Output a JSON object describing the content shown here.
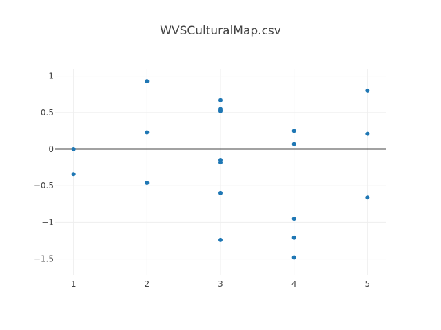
{
  "chart_data": {
    "type": "scatter",
    "title": "WVSCulturalMap.csv",
    "xlabel": "",
    "ylabel": "",
    "xlim": [
      0.75,
      5.25
    ],
    "ylim": [
      -1.72,
      1.1
    ],
    "x_ticks": [
      1,
      2,
      3,
      4,
      5
    ],
    "y_ticks": [
      1,
      0.5,
      0,
      -0.5,
      -1,
      -1.5
    ],
    "x_tick_labels": [
      "1",
      "2",
      "3",
      "4",
      "5"
    ],
    "y_tick_labels": [
      "1",
      "0.5",
      "0",
      "−0.5",
      "−1",
      "−1.5"
    ],
    "grid": true,
    "marker_color": "#1f77b4",
    "series": [
      {
        "x": [
          1,
          1,
          2,
          2,
          2,
          3,
          3,
          3,
          3,
          3,
          3,
          3,
          3,
          4,
          4,
          4,
          4,
          4,
          5,
          5,
          5
        ],
        "y": [
          0.0,
          -0.34,
          0.93,
          0.23,
          -0.46,
          0.67,
          0.55,
          0.52,
          -0.15,
          -0.18,
          -0.6,
          -1.24,
          0.53,
          0.25,
          0.07,
          -0.95,
          -1.21,
          -1.48,
          0.8,
          0.21,
          -0.66
        ]
      }
    ]
  }
}
